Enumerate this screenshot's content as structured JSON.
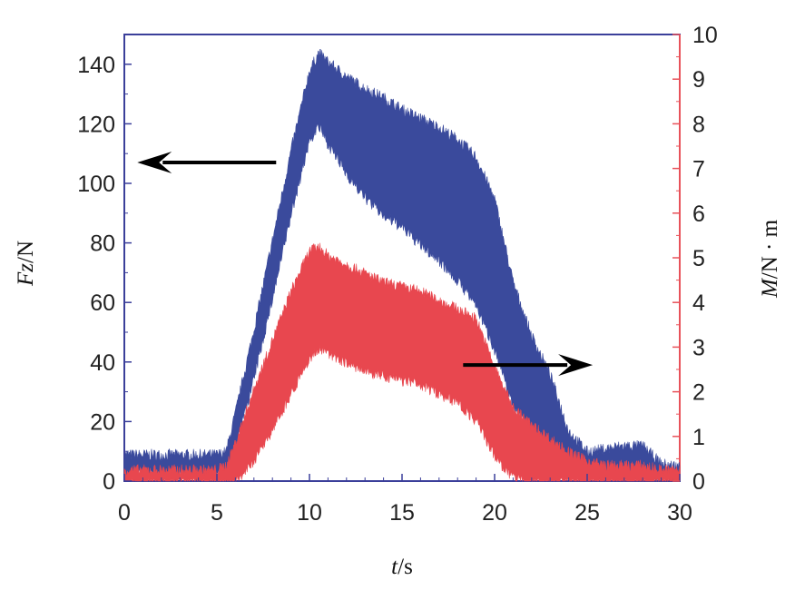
{
  "chart_data": {
    "type": "area",
    "x_axis": {
      "label_italic": "t",
      "label_rest": "/s",
      "range": [
        0,
        30
      ],
      "ticks": [
        "0",
        "5",
        "10",
        "15",
        "20",
        "25",
        "30"
      ],
      "color": "#3b3f9a"
    },
    "y_left": {
      "label_italic": "Fz",
      "label_rest": "/N",
      "range": [
        0,
        150
      ],
      "ticks": [
        "0",
        "20",
        "40",
        "60",
        "80",
        "100",
        "120",
        "140"
      ],
      "color": "#3b3f9a"
    },
    "y_right": {
      "label_italic": "M",
      "label_rest": "/N · m",
      "range": [
        0,
        10
      ],
      "ticks": [
        "0",
        "1",
        "2",
        "3",
        "4",
        "5",
        "6",
        "7",
        "8",
        "9",
        "10"
      ],
      "color": "#e8525a"
    },
    "series": [
      {
        "axis": "left",
        "color": "#3a4a9c",
        "x": [
          0,
          1,
          2,
          3,
          4,
          5,
          5.5,
          6,
          7,
          8,
          9,
          10,
          10.5,
          11,
          12,
          13,
          14,
          15,
          16,
          17,
          18,
          19,
          20,
          21,
          22,
          23,
          24,
          25,
          26,
          27,
          28,
          29,
          30
        ],
        "upper": [
          8,
          8,
          8,
          8,
          8,
          8,
          9,
          22,
          50,
          80,
          110,
          137,
          143,
          140,
          135,
          131,
          128,
          124,
          121,
          118,
          114,
          108,
          94,
          66,
          48,
          35,
          16,
          9,
          10,
          11,
          11,
          5,
          4
        ],
        "lower": [
          3,
          3,
          3,
          3,
          3,
          3,
          4,
          12,
          35,
          62,
          90,
          115,
          120,
          114,
          104,
          96,
          90,
          86,
          80,
          75,
          68,
          60,
          45,
          26,
          18,
          12,
          5,
          3,
          3,
          3,
          3,
          1,
          1
        ]
      },
      {
        "axis": "right",
        "color": "#e8474f",
        "x": [
          0,
          1,
          2,
          3,
          4,
          5,
          5.5,
          6,
          7,
          8,
          9,
          10,
          10.5,
          11,
          12,
          13,
          14,
          15,
          16,
          17,
          18,
          19,
          20,
          21,
          22,
          23,
          24,
          25,
          26,
          27,
          28,
          29,
          30
        ],
        "upper": [
          0.2,
          0.2,
          0.2,
          0.2,
          0.2,
          0.2,
          0.3,
          0.8,
          2.0,
          3.1,
          4.2,
          5.1,
          5.2,
          5.0,
          4.8,
          4.6,
          4.4,
          4.3,
          4.2,
          4.0,
          3.8,
          3.6,
          2.5,
          1.6,
          1.2,
          0.9,
          0.6,
          0.4,
          0.3,
          0.3,
          0.3,
          0.2,
          0.2
        ],
        "lower": [
          0.0,
          0.0,
          0.0,
          0.0,
          0.0,
          0.0,
          0.0,
          0.0,
          0.5,
          1.2,
          2.0,
          2.8,
          3.0,
          2.9,
          2.7,
          2.5,
          2.4,
          2.3,
          2.2,
          2.0,
          1.8,
          1.4,
          0.6,
          0.1,
          0.0,
          0.0,
          0.0,
          0.0,
          0.0,
          0.0,
          0.0,
          0.0,
          0.0
        ]
      }
    ],
    "annotations": [
      {
        "type": "arrow",
        "direction": "left",
        "points_to_axis": "left",
        "from": [
          8.2,
          107
        ],
        "to": [
          0.7,
          107
        ]
      },
      {
        "type": "arrow",
        "direction": "right",
        "points_to_axis": "right",
        "from": [
          18.3,
          2.6
        ],
        "to": [
          25.3,
          2.6
        ]
      }
    ],
    "grid": false
  }
}
